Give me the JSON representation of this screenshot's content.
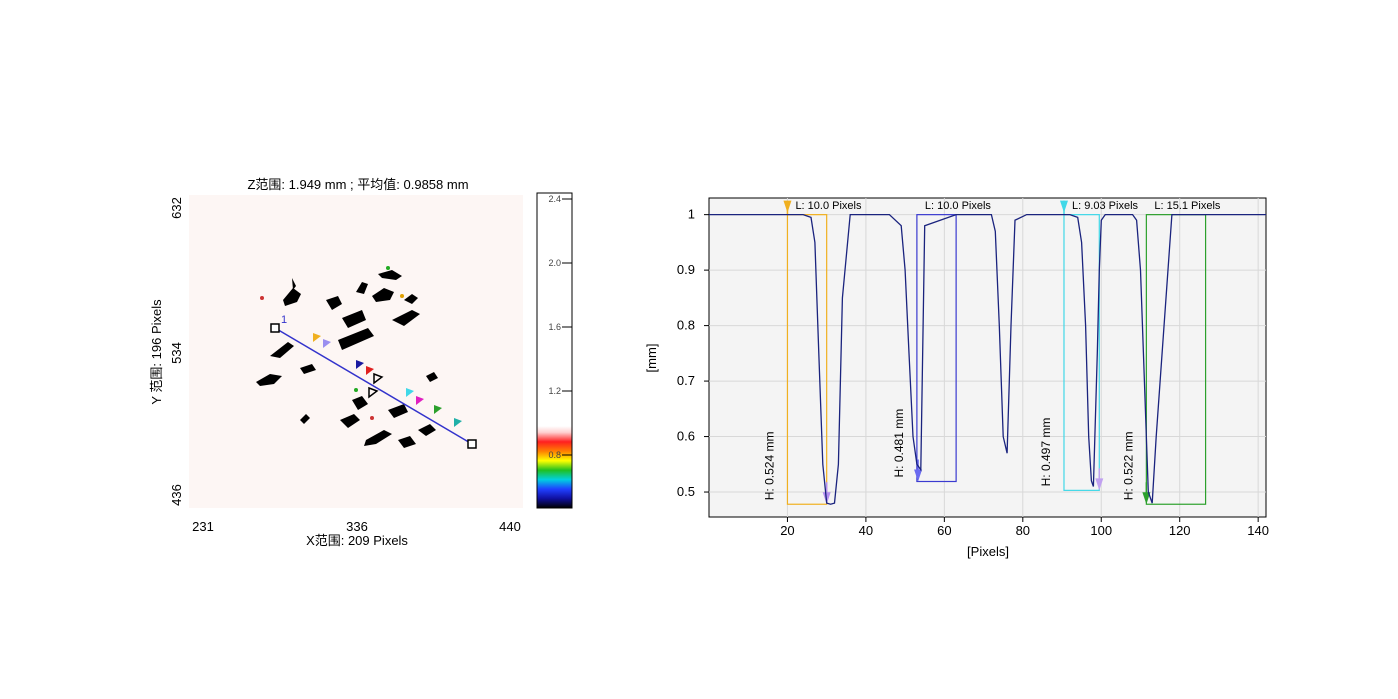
{
  "left_panel": {
    "title": "Z范围: 1.949 mm ; 平均值: 0.9858 mm",
    "x_label": "X范围: 209 Pixels",
    "y_label": "Y 范围: 196 Pixels",
    "x_ticks": [
      "231",
      "336",
      "440"
    ],
    "y_ticks": [
      "632",
      "534",
      "436"
    ],
    "profile_line_label": "1",
    "colorbar_ticks": [
      "2.4",
      "2.0",
      "1.6",
      "1.2",
      "0.8"
    ],
    "colors": {
      "line": "#3333cc",
      "background": "#fdf6f4"
    }
  },
  "chart_data": {
    "type": "line",
    "title": "",
    "xlabel": "[Pixels]",
    "ylabel": "[mm]",
    "xlim": [
      0,
      142
    ],
    "ylim": [
      0.455,
      1.03
    ],
    "x_ticks": [
      20,
      40,
      60,
      80,
      100,
      120,
      140
    ],
    "y_ticks": [
      0.5,
      0.6,
      0.7,
      0.8,
      0.9,
      1
    ],
    "y_tick_labels": [
      "0.5",
      "0.6",
      "0.7",
      "0.8",
      "0.9",
      "1"
    ],
    "grid": true,
    "series": [
      {
        "color": "#1a237e",
        "x": [
          0,
          20,
          24,
          26,
          27,
          28,
          29,
          30,
          31,
          32,
          33,
          34,
          36,
          46,
          49,
          50,
          51,
          52,
          53,
          54,
          55,
          63,
          66,
          72,
          73,
          74,
          75,
          76,
          77,
          78,
          81,
          87,
          92,
          94,
          95,
          96,
          96.8,
          97.5,
          98,
          99,
          99.5,
          100,
          101,
          104,
          108,
          109,
          110,
          111,
          112,
          113,
          114,
          118,
          142
        ],
        "values": [
          1.0,
          1.0,
          1.0,
          0.995,
          0.95,
          0.75,
          0.55,
          0.48,
          0.478,
          0.48,
          0.55,
          0.85,
          1.0,
          1.0,
          0.98,
          0.9,
          0.75,
          0.6,
          0.55,
          0.54,
          0.98,
          1.0,
          1.0,
          1.0,
          0.97,
          0.8,
          0.6,
          0.57,
          0.8,
          0.99,
          1.0,
          1.0,
          1.0,
          0.995,
          0.95,
          0.8,
          0.6,
          0.52,
          0.51,
          0.75,
          0.9,
          0.99,
          1.0,
          1.0,
          1.0,
          0.99,
          0.9,
          0.7,
          0.5,
          0.48,
          0.6,
          1.0,
          1.0
        ]
      }
    ],
    "markers": [
      {
        "x1": 20,
        "x2": 30,
        "y_bottom": 0.478,
        "color": "#f0b020",
        "length_label": "L:  10.0 Pixels",
        "height_label": "H: 0.524 mm",
        "top_marker_x": 20,
        "bottom_marker_x": 30,
        "bottom_marker_y": 0.478,
        "bottom_marker_color": "#b58ef0"
      },
      {
        "x1": 53,
        "x2": 63,
        "y_bottom": 0.519,
        "color": "#3a3ad0",
        "length_label": "L:  10.0 Pixels",
        "height_label": "H: 0.481 mm",
        "top_marker_x": null,
        "bottom_marker_x": 53.3,
        "bottom_marker_y": 0.519,
        "bottom_marker_color": "#6a6af0"
      },
      {
        "x1": 90.5,
        "x2": 99.5,
        "y_bottom": 0.503,
        "color": "#40d8e8",
        "length_label": "L:  9.03 Pixels",
        "height_label": "H: 0.497 mm",
        "top_marker_x": 90.5,
        "bottom_marker_x": 99.5,
        "bottom_marker_y": 0.503,
        "bottom_marker_color": "#c0a0f0"
      },
      {
        "x1": 111.5,
        "x2": 126.6,
        "y_bottom": 0.478,
        "color": "#2ca02c",
        "length_label": "L:  15.1 Pixels",
        "height_label": "H: 0.522 mm",
        "top_marker_x": null,
        "bottom_marker_x": 111.5,
        "bottom_marker_y": 0.478,
        "bottom_marker_color": "#2ca02c"
      }
    ]
  }
}
